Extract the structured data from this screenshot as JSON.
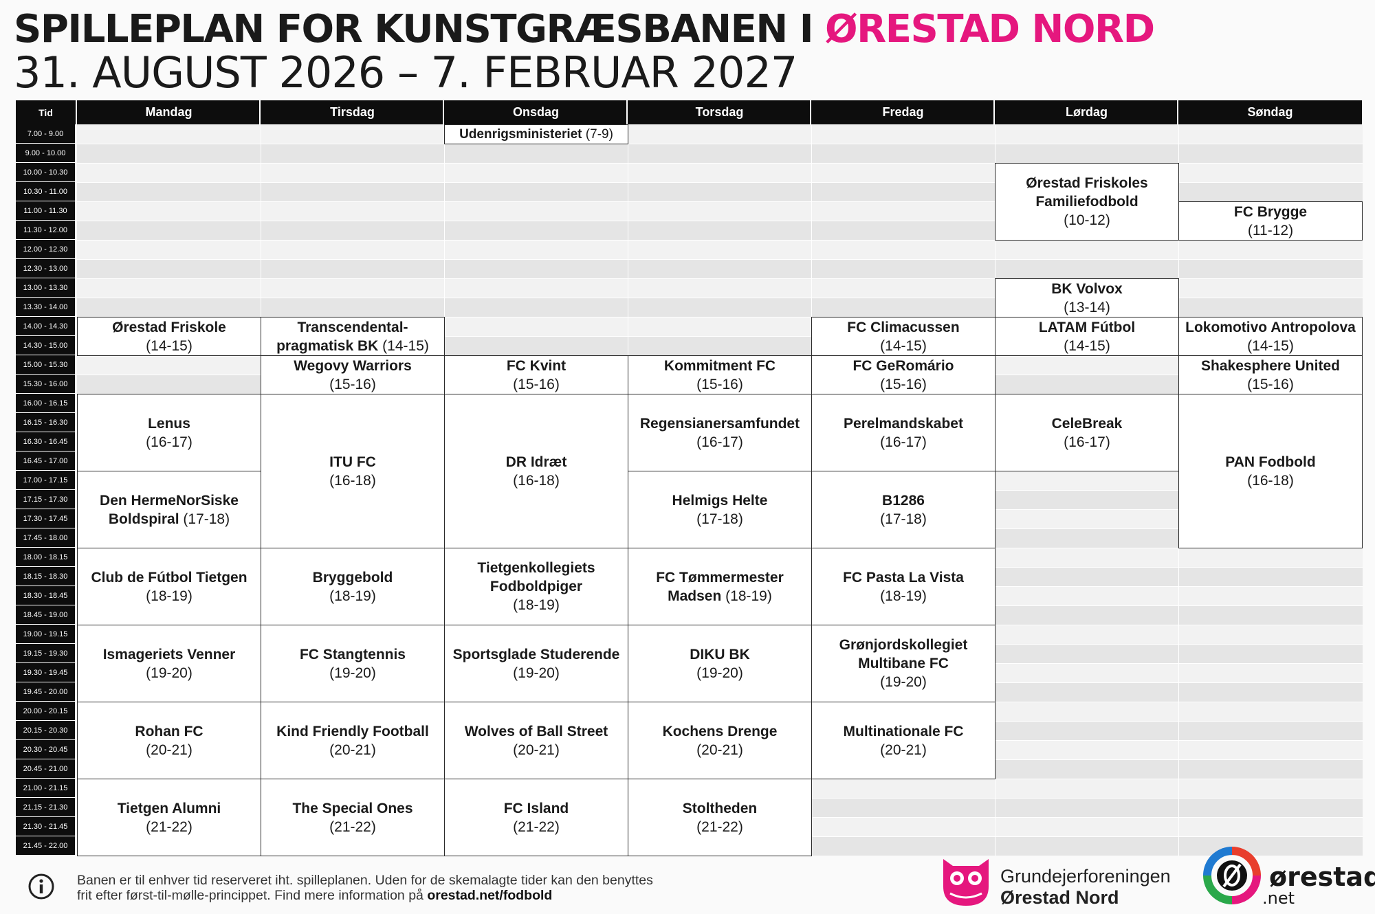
{
  "header": {
    "title_main": "SPILLEPLAN FOR KUNSTGRÆSBANEN I",
    "title_accent": "ØRESTAD NORD",
    "subtitle": "31. AUGUST 2026 – 7. FEBRUAR 2027"
  },
  "colors": {
    "accent": "#e5177e",
    "header_bg": "#0d0d0d",
    "stripe_light": "#f2f2f2",
    "stripe_dark": "#e5e5e5"
  },
  "schedule": {
    "time_header": "Tid",
    "days": [
      "Mandag",
      "Tirsdag",
      "Onsdag",
      "Torsdag",
      "Fredag",
      "Lørdag",
      "Søndag"
    ],
    "slots": [
      "7.00 - 9.00",
      "9.00 - 10.00",
      "10.00 - 10.30",
      "10.30 - 11.00",
      "11.00 - 11.30",
      "11.30 - 12.00",
      "12.00 - 12.30",
      "12.30 - 13.00",
      "13.00 - 13.30",
      "13.30 - 14.00",
      "14.00 - 14.30",
      "14.30 - 15.00",
      "15.00 - 15.30",
      "15.30 - 16.00",
      "16.00 - 16.15",
      "16.15 - 16.30",
      "16.30 - 16.45",
      "16.45 - 17.00",
      "17.00 - 17.15",
      "17.15 - 17.30",
      "17.30 - 17.45",
      "17.45 - 18.00",
      "18.00 - 18.15",
      "18.15 - 18.30",
      "18.30 - 18.45",
      "18.45 - 19.00",
      "19.00 - 19.15",
      "19.15 - 19.30",
      "19.30 - 19.45",
      "19.45 - 20.00",
      "20.00 - 20.15",
      "20.15 - 20.30",
      "20.30 - 20.45",
      "20.45 - 21.00",
      "21.00 - 21.15",
      "21.15 - 21.30",
      "21.30 - 21.45",
      "21.45 - 22.00"
    ],
    "events": [
      {
        "day": 2,
        "start": 0,
        "span": 1,
        "name": "Udenrigsministeriet",
        "time": "(7-9)",
        "inline": true
      },
      {
        "day": 5,
        "start": 2,
        "span": 4,
        "name": "Ørestad Friskoles Familiefodbold",
        "time": "(10-12)"
      },
      {
        "day": 6,
        "start": 4,
        "span": 2,
        "name": "FC Brygge",
        "time": "(11-12)"
      },
      {
        "day": 5,
        "start": 8,
        "span": 2,
        "name": "BK Volvox",
        "time": "(13-14)"
      },
      {
        "day": 0,
        "start": 10,
        "span": 2,
        "name": "Ørestad Friskole",
        "time": "(14-15)"
      },
      {
        "day": 1,
        "start": 10,
        "span": 2,
        "name": "Transcendental-pragmatisk BK",
        "time": "(14-15)",
        "inline": true
      },
      {
        "day": 4,
        "start": 10,
        "span": 2,
        "name": "FC Climacussen",
        "time": "(14-15)"
      },
      {
        "day": 5,
        "start": 10,
        "span": 2,
        "name": "LATAM Fútbol",
        "time": "(14-15)"
      },
      {
        "day": 6,
        "start": 10,
        "span": 2,
        "name": "Lokomotivo Antropolova",
        "time": "(14-15)"
      },
      {
        "day": 1,
        "start": 12,
        "span": 2,
        "name": "Wegovy Warriors",
        "time": "(15-16)"
      },
      {
        "day": 2,
        "start": 12,
        "span": 2,
        "name": "FC Kvint",
        "time": "(15-16)"
      },
      {
        "day": 3,
        "start": 12,
        "span": 2,
        "name": "Kommitment FC",
        "time": "(15-16)"
      },
      {
        "day": 4,
        "start": 12,
        "span": 2,
        "name": "FC GeRomário",
        "time": "(15-16)"
      },
      {
        "day": 6,
        "start": 12,
        "span": 2,
        "name": "Shakesphere United",
        "time": "(15-16)"
      },
      {
        "day": 0,
        "start": 14,
        "span": 4,
        "name": "Lenus",
        "time": "(16-17)"
      },
      {
        "day": 1,
        "start": 14,
        "span": 8,
        "name": "ITU FC",
        "time": "(16-18)"
      },
      {
        "day": 2,
        "start": 14,
        "span": 8,
        "name": "DR Idræt",
        "time": "(16-18)"
      },
      {
        "day": 3,
        "start": 14,
        "span": 4,
        "name": "Regensianersamfundet",
        "time": "(16-17)"
      },
      {
        "day": 4,
        "start": 14,
        "span": 4,
        "name": "Perelmandskabet",
        "time": "(16-17)"
      },
      {
        "day": 5,
        "start": 14,
        "span": 4,
        "name": "CeleBreak",
        "time": "(16-17)"
      },
      {
        "day": 6,
        "start": 14,
        "span": 8,
        "name": "PAN Fodbold",
        "time": "(16-18)"
      },
      {
        "day": 0,
        "start": 18,
        "span": 4,
        "name": "Den HermeNorSiske Boldspiral",
        "time": "(17-18)",
        "inline": true
      },
      {
        "day": 3,
        "start": 18,
        "span": 4,
        "name": "Helmigs Helte",
        "time": "(17-18)"
      },
      {
        "day": 4,
        "start": 18,
        "span": 4,
        "name": "B1286",
        "time": "(17-18)"
      },
      {
        "day": 0,
        "start": 22,
        "span": 4,
        "name": "Club de Fútbol Tietgen",
        "time": "(18-19)"
      },
      {
        "day": 1,
        "start": 22,
        "span": 4,
        "name": "Bryggebold",
        "time": "(18-19)"
      },
      {
        "day": 2,
        "start": 22,
        "span": 4,
        "name": "Tietgenkollegiets Fodboldpiger",
        "time": "(18-19)"
      },
      {
        "day": 3,
        "start": 22,
        "span": 4,
        "name": "FC Tømmermester Madsen",
        "time": "(18-19)",
        "inline": true
      },
      {
        "day": 4,
        "start": 22,
        "span": 4,
        "name": "FC Pasta La Vista",
        "time": "(18-19)"
      },
      {
        "day": 0,
        "start": 26,
        "span": 4,
        "name": "Ismageriets Venner",
        "time": "(19-20)"
      },
      {
        "day": 1,
        "start": 26,
        "span": 4,
        "name": "FC Stangtennis",
        "time": "(19-20)"
      },
      {
        "day": 2,
        "start": 26,
        "span": 4,
        "name": "Sportsglade Studerende",
        "time": "(19-20)"
      },
      {
        "day": 3,
        "start": 26,
        "span": 4,
        "name": "DIKU BK",
        "time": "(19-20)"
      },
      {
        "day": 4,
        "start": 26,
        "span": 4,
        "name": "Grønjordskollegiet Multibane FC",
        "time": "(19-20)"
      },
      {
        "day": 0,
        "start": 30,
        "span": 4,
        "name": "Rohan FC",
        "time": "(20-21)"
      },
      {
        "day": 1,
        "start": 30,
        "span": 4,
        "name": "Kind Friendly Football",
        "time": "(20-21)"
      },
      {
        "day": 2,
        "start": 30,
        "span": 4,
        "name": "Wolves of Ball Street",
        "time": "(20-21)"
      },
      {
        "day": 3,
        "start": 30,
        "span": 4,
        "name": "Kochens Drenge",
        "time": "(20-21)"
      },
      {
        "day": 4,
        "start": 30,
        "span": 4,
        "name": "Multinationale FC",
        "time": "(20-21)"
      },
      {
        "day": 0,
        "start": 34,
        "span": 4,
        "name": "Tietgen Alumni",
        "time": "(21-22)"
      },
      {
        "day": 1,
        "start": 34,
        "span": 4,
        "name": "The Special Ones",
        "time": "(21-22)"
      },
      {
        "day": 2,
        "start": 34,
        "span": 4,
        "name": "FC Island",
        "time": "(21-22)"
      },
      {
        "day": 3,
        "start": 34,
        "span": 4,
        "name": "Stoltheden",
        "time": "(21-22)"
      }
    ]
  },
  "footer": {
    "info_text": "Banen er til enhver tid reserveret iht. spilleplanen. Uden for de skemalagte tider kan den benyttes frit efter først-til-mølle-princippet. Find mere information på",
    "info_url": "orestad.net/fodbold",
    "logo1_line1": "Grundejerforeningen",
    "logo1_line2": "Ørestad Nord",
    "logo2_name": "ørestad",
    "logo2_suffix": ".net"
  }
}
